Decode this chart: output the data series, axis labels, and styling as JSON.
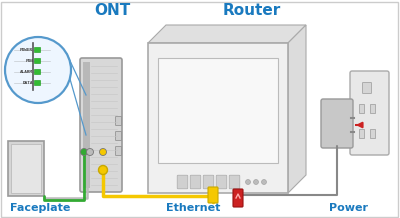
{
  "bg_color": "#ffffff",
  "border_color": "#cccccc",
  "label_ont": "ONT",
  "label_router": "Router",
  "label_faceplate": "Faceplate",
  "label_ethernet": "Ethernet",
  "label_power": "Power",
  "label_color": "#1a7abf",
  "ont_labels": [
    "POWER",
    "PON",
    "ALARM",
    "DATA"
  ],
  "indicator_color": "#33bb33",
  "cable_yellow": "#f5c800",
  "cable_green": "#33aa33",
  "cable_gray": "#999999",
  "cable_red": "#cc2222",
  "zoom_circle_color": "#5599cc",
  "ont_body_color": "#d8d8d8",
  "ont_stripe_color": "#c0c0c0",
  "router_face_color": "#f0f0f0",
  "router_edge_color": "#aaaaaa",
  "router_top_color": "#e0e0e0",
  "outlet_color": "#e8e8e8",
  "adapter_color": "#c8c8c8",
  "faceplate_color": "#cccccc",
  "red_arrow_color": "#cc2222"
}
